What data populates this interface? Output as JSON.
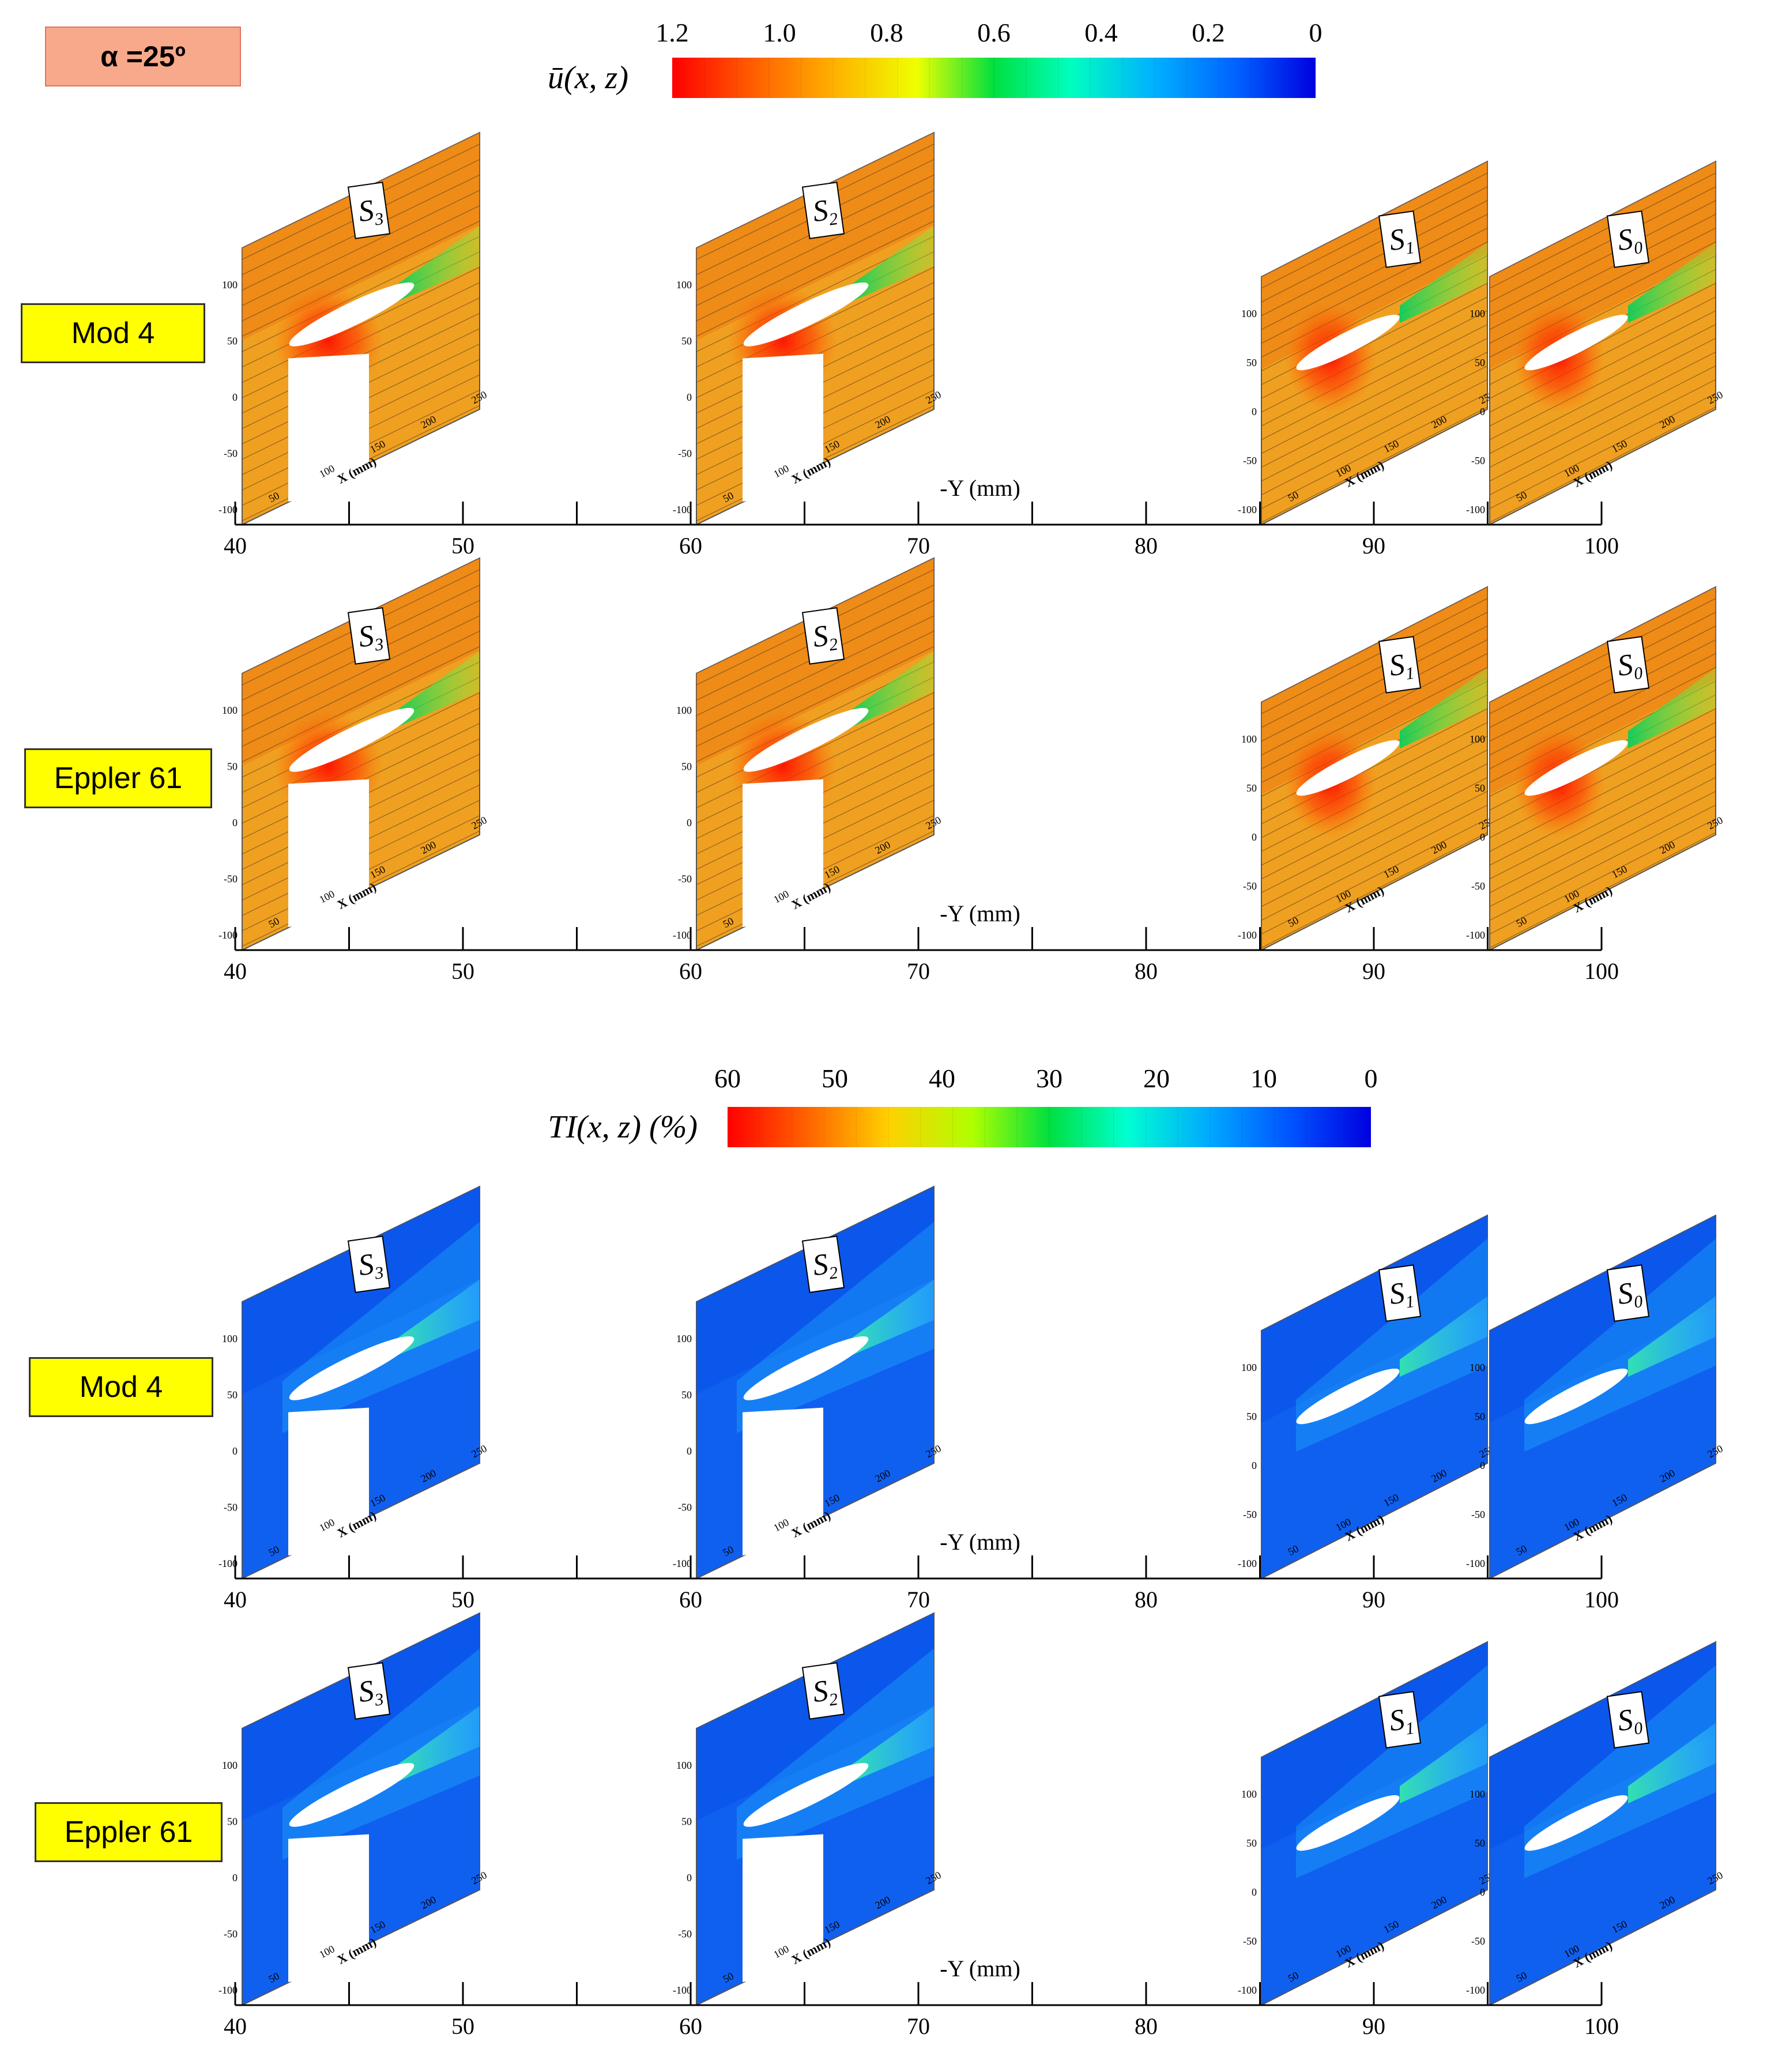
{
  "figure": {
    "angle_label": "α =25º",
    "models": [
      "Mod 4",
      "Eppler 61",
      "Mod 4",
      "Eppler 61"
    ],
    "sections": [
      "S3",
      "S2",
      "S1",
      "S0"
    ],
    "y_axis_title": "-Y (mm)",
    "y_ticks": [
      "40",
      "50",
      "60",
      "70",
      "80",
      "90",
      "100"
    ],
    "x_axis_label": "X (mm)",
    "x_ticks": [
      "50",
      "100",
      "150",
      "200",
      "250"
    ],
    "z_ticks": [
      "100",
      "50",
      "0",
      "-50",
      "-100"
    ],
    "colors": {
      "angle_box": "#f9a98b",
      "model_box": "#ffff00"
    }
  },
  "velocity_legend": {
    "title": "ū(x, z)",
    "ticks": [
      "1.2",
      "1.0",
      "0.8",
      "0.6",
      "0.4",
      "0.2",
      "0"
    ],
    "range": [
      0,
      1.2
    ]
  },
  "ti_legend": {
    "title": "TI(x, z) (%)",
    "ticks": [
      "60",
      "50",
      "40",
      "30",
      "20",
      "10",
      "0"
    ],
    "range": [
      0,
      60
    ]
  }
}
